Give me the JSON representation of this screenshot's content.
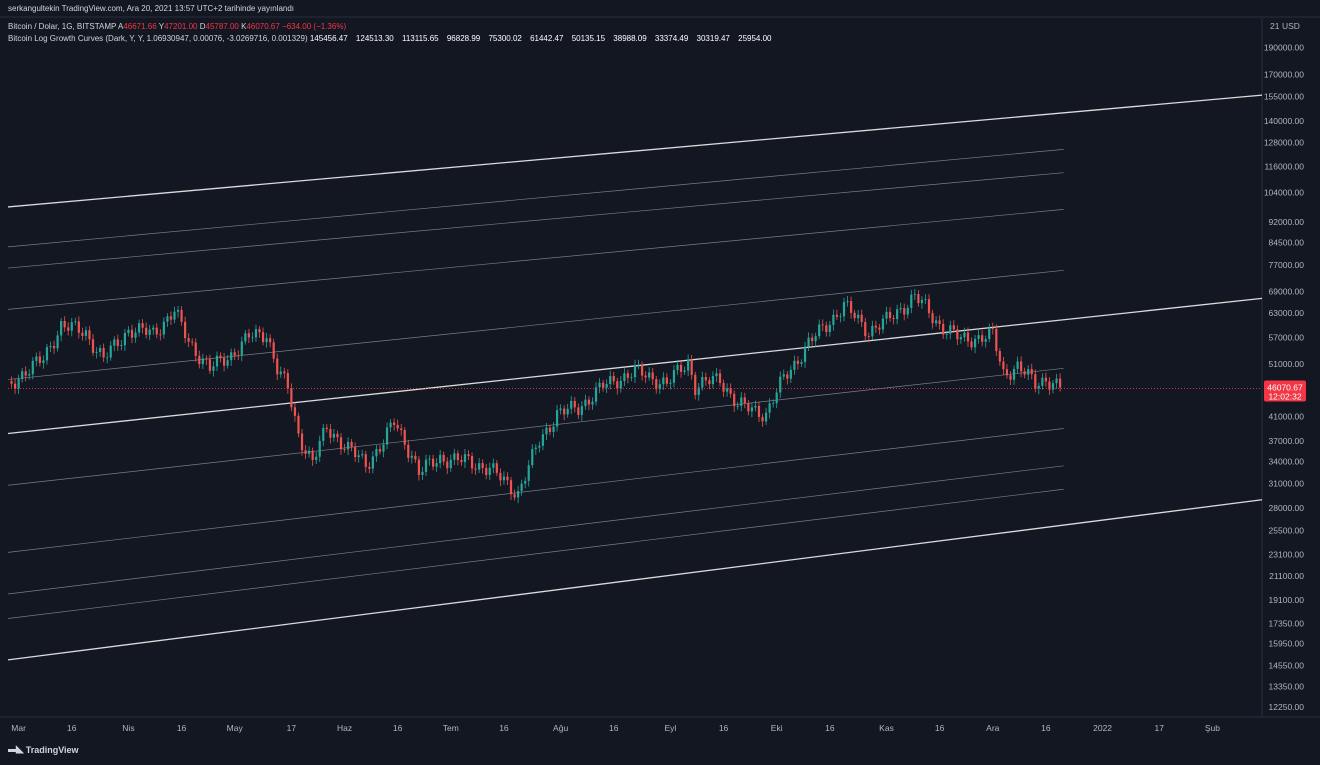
{
  "header": {
    "publish_line": "serkangultekin TradingView.com, Ara 20, 2021 13:57 UTC+2 tarihinde yayınlandı",
    "symbol": "Bitcoin / Dolar, 1G, BITSTAMP",
    "ohlc": {
      "a_label": "A",
      "a": "46671.66",
      "y_label": "Y",
      "y": "47201.00",
      "d_label": "D",
      "d": "45787.00",
      "k_label": "K",
      "k": "46070.67",
      "change": "−634.00 (−1.36%)"
    },
    "indicator_name": "Bitcoin Log Growth Curves (Dark, Y, Y, 1.06930947, 0.00076, -3.0269716, 0.001329)",
    "indicator_values": [
      "145456.47",
      "124513.30",
      "113115.65",
      "96828.99",
      "75300.02",
      "61442.47",
      "50135.15",
      "38988.09",
      "33374.49",
      "30319.47",
      "25954.00"
    ]
  },
  "price_axis": {
    "currency": "USD",
    "top_partial": "21",
    "ticks": [
      "190000.00",
      "170000.00",
      "155000.00",
      "140000.00",
      "128000.00",
      "116000.00",
      "104000.00",
      "92000.00",
      "84500.00",
      "77000.00",
      "69000.00",
      "63000.00",
      "57000.00",
      "51000.00",
      "41000.00",
      "37000.00",
      "34000.00",
      "31000.00",
      "28000.00",
      "25500.00",
      "23100.00",
      "21100.00",
      "19100.00",
      "17350.00",
      "15950.00",
      "14550.00",
      "13350.00",
      "12250.00"
    ],
    "last_price": "46070.67",
    "countdown": "12:02:32"
  },
  "time_axis": {
    "labels": [
      "Mar",
      "16",
      "Nis",
      "16",
      "May",
      "17",
      "Haz",
      "16",
      "Tem",
      "16",
      "Ağu",
      "16",
      "Eyl",
      "16",
      "Eki",
      "16",
      "Kas",
      "16",
      "Ara",
      "16",
      "2022",
      "17",
      "Şub"
    ]
  },
  "footer": {
    "brand": "TradingView"
  },
  "colors": {
    "background": "#131722",
    "up": "#26a69a",
    "down": "#ef5350",
    "curve_bold": "#e6e6e6",
    "curve_thin": "#9aa0aa",
    "price_tag": "#f23645",
    "axis_text": "#b2b5be"
  },
  "chart_data": {
    "type": "candlestick",
    "x_scale": "time (daily)",
    "y_scale": "log",
    "ylim": [
      11800,
      215000
    ],
    "xlim": [
      "2021-02-26",
      "2022-02-15"
    ],
    "grid": false,
    "log_growth_curves": [
      {
        "style": "bold",
        "start": [
          "2021-02-26",
          98000
        ],
        "end": [
          "2022-02-15",
          156000
        ]
      },
      {
        "style": "thin",
        "start": [
          "2021-02-26",
          83000
        ],
        "end": [
          "2021-12-21",
          124500
        ]
      },
      {
        "style": "thin",
        "start": [
          "2021-02-26",
          76000
        ],
        "end": [
          "2021-12-21",
          113000
        ]
      },
      {
        "style": "thin",
        "start": [
          "2021-02-26",
          64000
        ],
        "end": [
          "2021-12-21",
          97000
        ]
      },
      {
        "style": "thin",
        "start": [
          "2021-02-26",
          47800
        ],
        "end": [
          "2021-12-21",
          75300
        ]
      },
      {
        "style": "bold",
        "start": [
          "2021-02-26",
          38200
        ],
        "end": [
          "2022-02-15",
          67000
        ]
      },
      {
        "style": "thin",
        "start": [
          "2021-02-26",
          30800
        ],
        "end": [
          "2021-12-21",
          50100
        ]
      },
      {
        "style": "thin",
        "start": [
          "2021-02-26",
          23300
        ],
        "end": [
          "2021-12-21",
          39000
        ]
      },
      {
        "style": "thin",
        "start": [
          "2021-02-26",
          19600
        ],
        "end": [
          "2021-12-21",
          33400
        ]
      },
      {
        "style": "thin",
        "start": [
          "2021-02-26",
          17700
        ],
        "end": [
          "2021-12-21",
          30300
        ]
      },
      {
        "style": "bold",
        "start": [
          "2021-02-26",
          14900
        ],
        "end": [
          "2022-02-15",
          29000
        ]
      }
    ],
    "price_path": [
      [
        "2021-02-26",
        46000
      ],
      [
        "2021-03-01",
        48500
      ],
      [
        "2021-03-08",
        52000
      ],
      [
        "2021-03-13",
        60000
      ],
      [
        "2021-03-20",
        58000
      ],
      [
        "2021-03-25",
        52000
      ],
      [
        "2021-04-01",
        58800
      ],
      [
        "2021-04-08",
        58000
      ],
      [
        "2021-04-14",
        63500
      ],
      [
        "2021-04-18",
        56000
      ],
      [
        "2021-04-24",
        50000
      ],
      [
        "2021-04-30",
        53000
      ],
      [
        "2021-05-05",
        57000
      ],
      [
        "2021-05-10",
        58000
      ],
      [
        "2021-05-13",
        50000
      ],
      [
        "2021-05-16",
        46000
      ],
      [
        "2021-05-19",
        38000
      ],
      [
        "2021-05-23",
        34000
      ],
      [
        "2021-05-27",
        39000
      ],
      [
        "2021-06-01",
        36500
      ],
      [
        "2021-06-07",
        33500
      ],
      [
        "2021-06-12",
        37000
      ],
      [
        "2021-06-15",
        40000
      ],
      [
        "2021-06-20",
        35000
      ],
      [
        "2021-06-22",
        32500
      ],
      [
        "2021-06-28",
        34500
      ],
      [
        "2021-07-06",
        34000
      ],
      [
        "2021-07-12",
        33000
      ],
      [
        "2021-07-20",
        29800
      ],
      [
        "2021-07-26",
        37000
      ],
      [
        "2021-07-31",
        41500
      ],
      [
        "2021-08-06",
        42500
      ],
      [
        "2021-08-13",
        46500
      ],
      [
        "2021-08-22",
        49500
      ],
      [
        "2021-08-31",
        47000
      ],
      [
        "2021-09-06",
        51500
      ],
      [
        "2021-09-08",
        46500
      ],
      [
        "2021-09-15",
        48000
      ],
      [
        "2021-09-20",
        43000
      ],
      [
        "2021-09-28",
        41500
      ],
      [
        "2021-10-03",
        48000
      ],
      [
        "2021-10-10",
        55500
      ],
      [
        "2021-10-16",
        61000
      ],
      [
        "2021-10-20",
        65000
      ],
      [
        "2021-10-27",
        58500
      ],
      [
        "2021-11-01",
        61000
      ],
      [
        "2021-11-09",
        67500
      ],
      [
        "2021-11-12",
        64500
      ],
      [
        "2021-11-16",
        60000
      ],
      [
        "2021-11-22",
        56500
      ],
      [
        "2021-11-28",
        57000
      ],
      [
        "2021-12-01",
        57500
      ],
      [
        "2021-12-04",
        49000
      ],
      [
        "2021-12-08",
        50500
      ],
      [
        "2021-12-13",
        47000
      ],
      [
        "2021-12-16",
        48000
      ],
      [
        "2021-12-20",
        46070
      ]
    ]
  }
}
